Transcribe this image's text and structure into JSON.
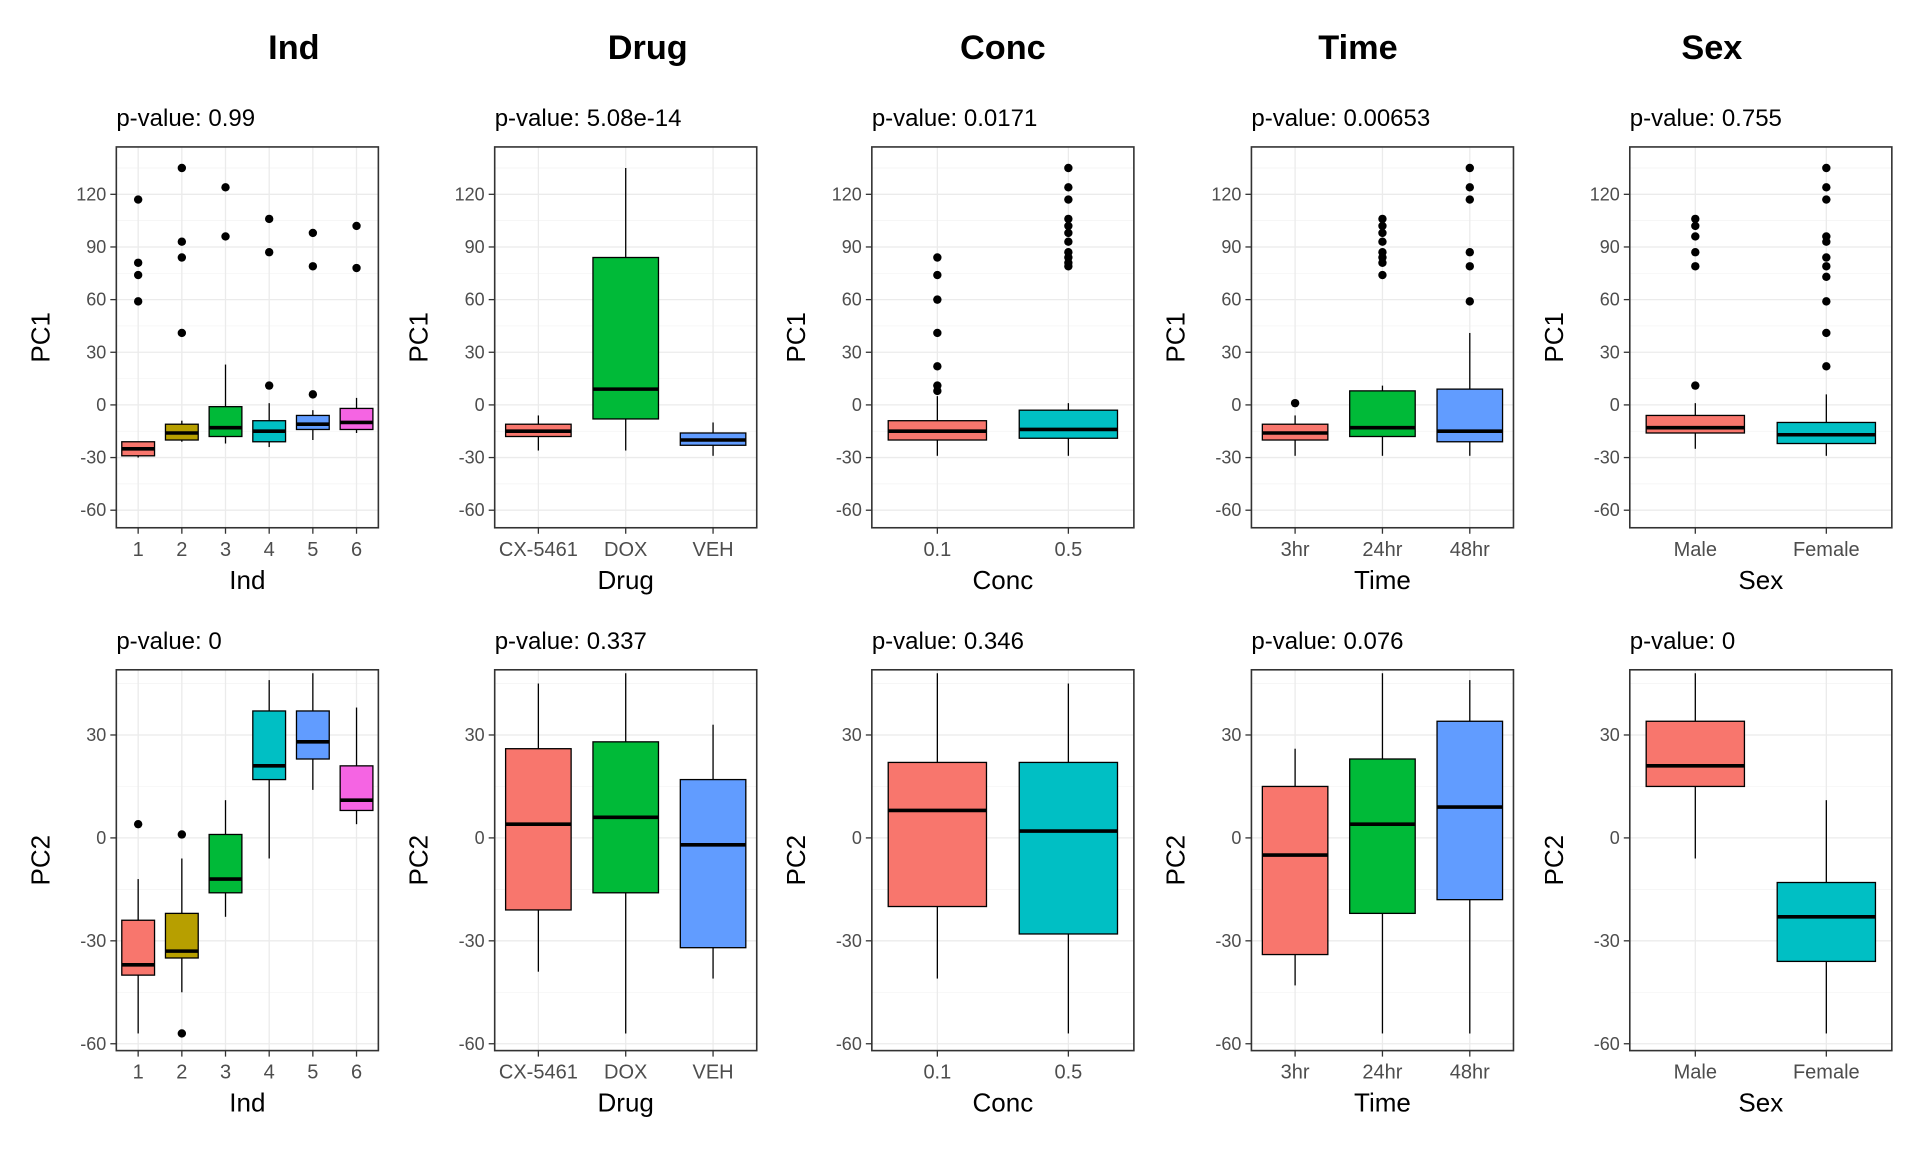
{
  "column_titles": [
    "Ind",
    "Drug",
    "Conc",
    "Time",
    "Sex"
  ],
  "chart_data": [
    {
      "type": "boxplot",
      "column": "Ind",
      "row": "PC1",
      "subtitle": "p-value: 0.99",
      "xlabel": "Ind",
      "ylabel": "PC1",
      "ylim": [
        -70,
        147
      ],
      "yticks": [
        -60,
        -30,
        0,
        30,
        60,
        90,
        120
      ],
      "grid": true,
      "categories": [
        "1",
        "2",
        "3",
        "4",
        "5",
        "6"
      ],
      "boxes": [
        {
          "q1": -29,
          "median": -25,
          "q3": -21,
          "lower": -30,
          "upper": -21,
          "color": "#F8766D",
          "outliers": [
            117,
            81,
            74,
            59
          ]
        },
        {
          "q1": -20,
          "median": -16,
          "q3": -11,
          "lower": -21,
          "upper": -9,
          "color": "#B79F00",
          "outliers": [
            135,
            93,
            84,
            41
          ]
        },
        {
          "q1": -18,
          "median": -13,
          "q3": -1,
          "lower": -22,
          "upper": 23,
          "color": "#00BA38",
          "outliers": [
            124,
            96
          ]
        },
        {
          "q1": -21,
          "median": -15,
          "q3": -9,
          "lower": -24,
          "upper": 1,
          "color": "#00BFC4",
          "outliers": [
            106,
            87,
            11
          ]
        },
        {
          "q1": -14,
          "median": -11,
          "q3": -6,
          "lower": -20,
          "upper": -3,
          "color": "#619CFF",
          "outliers": [
            98,
            79,
            6
          ]
        },
        {
          "q1": -14,
          "median": -10,
          "q3": -2,
          "lower": -16,
          "upper": 4,
          "color": "#F564E3",
          "outliers": [
            102,
            78
          ]
        }
      ]
    },
    {
      "type": "boxplot",
      "column": "Drug",
      "row": "PC1",
      "subtitle": "p-value: 5.08e-14",
      "xlabel": "Drug",
      "ylabel": "PC1",
      "ylim": [
        -70,
        147
      ],
      "yticks": [
        -60,
        -30,
        0,
        30,
        60,
        90,
        120
      ],
      "grid": true,
      "categories": [
        "CX-5461",
        "DOX",
        "VEH"
      ],
      "boxes": [
        {
          "q1": -18,
          "median": -15,
          "q3": -11,
          "lower": -26,
          "upper": -6,
          "color": "#F8766D",
          "outliers": []
        },
        {
          "q1": -8,
          "median": 9,
          "q3": 84,
          "lower": -26,
          "upper": 135,
          "color": "#00BA38",
          "outliers": []
        },
        {
          "q1": -23,
          "median": -20,
          "q3": -16,
          "lower": -29,
          "upper": -10,
          "color": "#619CFF",
          "outliers": []
        }
      ]
    },
    {
      "type": "boxplot",
      "column": "Conc",
      "row": "PC1",
      "subtitle": "p-value: 0.0171",
      "xlabel": "Conc",
      "ylabel": "PC1",
      "ylim": [
        -70,
        147
      ],
      "yticks": [
        -60,
        -30,
        0,
        30,
        60,
        90,
        120
      ],
      "grid": true,
      "categories": [
        "0.1",
        "0.5"
      ],
      "boxes": [
        {
          "q1": -20,
          "median": -15,
          "q3": -9,
          "lower": -29,
          "upper": 5,
          "color": "#F8766D",
          "outliers": [
            84,
            74,
            60,
            41,
            22,
            11,
            8
          ]
        },
        {
          "q1": -19,
          "median": -14,
          "q3": -3,
          "lower": -29,
          "upper": 1,
          "color": "#00BFC4",
          "outliers": [
            135,
            124,
            117,
            106,
            102,
            98,
            93,
            87,
            84,
            81,
            79
          ]
        }
      ]
    },
    {
      "type": "boxplot",
      "column": "Time",
      "row": "PC1",
      "subtitle": "p-value: 0.00653",
      "xlabel": "Time",
      "ylabel": "PC1",
      "ylim": [
        -70,
        147
      ],
      "yticks": [
        -60,
        -30,
        0,
        30,
        60,
        90,
        120
      ],
      "grid": true,
      "categories": [
        "3hr",
        "24hr",
        "48hr"
      ],
      "boxes": [
        {
          "q1": -20,
          "median": -16,
          "q3": -11,
          "lower": -29,
          "upper": -6,
          "color": "#F8766D",
          "outliers": [
            1
          ]
        },
        {
          "q1": -18,
          "median": -13,
          "q3": 8,
          "lower": -29,
          "upper": 11,
          "color": "#00BA38",
          "outliers": [
            106,
            102,
            98,
            93,
            87,
            84,
            81,
            74
          ]
        },
        {
          "q1": -21,
          "median": -15,
          "q3": 9,
          "lower": -29,
          "upper": 41,
          "color": "#619CFF",
          "outliers": [
            135,
            124,
            117,
            87,
            79,
            59
          ]
        }
      ]
    },
    {
      "type": "boxplot",
      "column": "Sex",
      "row": "PC1",
      "subtitle": "p-value: 0.755",
      "xlabel": "Sex",
      "ylabel": "PC1",
      "ylim": [
        -70,
        147
      ],
      "yticks": [
        -60,
        -30,
        0,
        30,
        60,
        90,
        120
      ],
      "grid": true,
      "categories": [
        "Male",
        "Female"
      ],
      "boxes": [
        {
          "q1": -16,
          "median": -13,
          "q3": -6,
          "lower": -25,
          "upper": 1,
          "color": "#F8766D",
          "outliers": [
            106,
            102,
            96,
            87,
            79,
            11
          ]
        },
        {
          "q1": -22,
          "median": -17,
          "q3": -10,
          "lower": -29,
          "upper": 6,
          "color": "#00BFC4",
          "outliers": [
            135,
            124,
            117,
            96,
            93,
            84,
            79,
            73,
            59,
            41,
            22
          ]
        }
      ]
    },
    {
      "type": "boxplot",
      "column": "Ind",
      "row": "PC2",
      "subtitle": "p-value: 0",
      "xlabel": "Ind",
      "ylabel": "PC2",
      "ylim": [
        -62,
        49
      ],
      "yticks": [
        -60,
        -30,
        0,
        30
      ],
      "grid": true,
      "categories": [
        "1",
        "2",
        "3",
        "4",
        "5",
        "6"
      ],
      "boxes": [
        {
          "q1": -40,
          "median": -37,
          "q3": -24,
          "lower": -57,
          "upper": -12,
          "color": "#F8766D",
          "outliers": [
            4
          ]
        },
        {
          "q1": -35,
          "median": -33,
          "q3": -22,
          "lower": -45,
          "upper": -6,
          "color": "#B79F00",
          "outliers": [
            1,
            -57
          ]
        },
        {
          "q1": -16,
          "median": -12,
          "q3": 1,
          "lower": -23,
          "upper": 11,
          "color": "#00BA38",
          "outliers": []
        },
        {
          "q1": 17,
          "median": 21,
          "q3": 37,
          "lower": -6,
          "upper": 46,
          "color": "#00BFC4",
          "outliers": []
        },
        {
          "q1": 23,
          "median": 28,
          "q3": 37,
          "lower": 14,
          "upper": 48,
          "color": "#619CFF",
          "outliers": []
        },
        {
          "q1": 8,
          "median": 11,
          "q3": 21,
          "lower": 4,
          "upper": 38,
          "color": "#F564E3",
          "outliers": []
        }
      ]
    },
    {
      "type": "boxplot",
      "column": "Drug",
      "row": "PC2",
      "subtitle": "p-value: 0.337",
      "xlabel": "Drug",
      "ylabel": "PC2",
      "ylim": [
        -62,
        49
      ],
      "yticks": [
        -60,
        -30,
        0,
        30
      ],
      "grid": true,
      "categories": [
        "CX-5461",
        "DOX",
        "VEH"
      ],
      "boxes": [
        {
          "q1": -21,
          "median": 4,
          "q3": 26,
          "lower": -39,
          "upper": 45,
          "color": "#F8766D",
          "outliers": []
        },
        {
          "q1": -16,
          "median": 6,
          "q3": 28,
          "lower": -57,
          "upper": 48,
          "color": "#00BA38",
          "outliers": []
        },
        {
          "q1": -32,
          "median": -2,
          "q3": 17,
          "lower": -41,
          "upper": 33,
          "color": "#619CFF",
          "outliers": []
        }
      ]
    },
    {
      "type": "boxplot",
      "column": "Conc",
      "row": "PC2",
      "subtitle": "p-value: 0.346",
      "xlabel": "Conc",
      "ylabel": "PC2",
      "ylim": [
        -62,
        49
      ],
      "yticks": [
        -60,
        -30,
        0,
        30
      ],
      "grid": true,
      "categories": [
        "0.1",
        "0.5"
      ],
      "boxes": [
        {
          "q1": -20,
          "median": 8,
          "q3": 22,
          "lower": -41,
          "upper": 48,
          "color": "#F8766D",
          "outliers": []
        },
        {
          "q1": -28,
          "median": 2,
          "q3": 22,
          "lower": -57,
          "upper": 45,
          "color": "#00BFC4",
          "outliers": []
        }
      ]
    },
    {
      "type": "boxplot",
      "column": "Time",
      "row": "PC2",
      "subtitle": "p-value: 0.076",
      "xlabel": "Time",
      "ylabel": "PC2",
      "ylim": [
        -62,
        49
      ],
      "yticks": [
        -60,
        -30,
        0,
        30
      ],
      "grid": true,
      "categories": [
        "3hr",
        "24hr",
        "48hr"
      ],
      "boxes": [
        {
          "q1": -34,
          "median": -5,
          "q3": 15,
          "lower": -43,
          "upper": 26,
          "color": "#F8766D",
          "outliers": []
        },
        {
          "q1": -22,
          "median": 4,
          "q3": 23,
          "lower": -57,
          "upper": 48,
          "color": "#00BA38",
          "outliers": []
        },
        {
          "q1": -18,
          "median": 9,
          "q3": 34,
          "lower": -57,
          "upper": 46,
          "color": "#619CFF",
          "outliers": []
        }
      ]
    },
    {
      "type": "boxplot",
      "column": "Sex",
      "row": "PC2",
      "subtitle": "p-value: 0",
      "xlabel": "Sex",
      "ylabel": "PC2",
      "ylim": [
        -62,
        49
      ],
      "yticks": [
        -60,
        -30,
        0,
        30
      ],
      "grid": true,
      "categories": [
        "Male",
        "Female"
      ],
      "boxes": [
        {
          "q1": 15,
          "median": 21,
          "q3": 34,
          "lower": -6,
          "upper": 48,
          "color": "#F8766D",
          "outliers": []
        },
        {
          "q1": -36,
          "median": -23,
          "q3": -13,
          "lower": -57,
          "upper": 11,
          "color": "#00BFC4",
          "outliers": []
        }
      ]
    }
  ]
}
